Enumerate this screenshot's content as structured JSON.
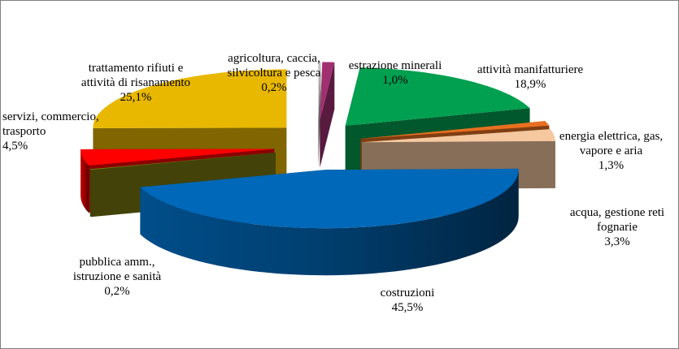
{
  "chart_data": {
    "type": "pie",
    "style": "3d exploded",
    "legend": "none",
    "slices": [
      {
        "label": "agricoltura, caccia,\nsilvicoltura e pesca",
        "value": 0.2,
        "display": "0,2%",
        "color": "#c0c0c0"
      },
      {
        "label": "estrazione minerali",
        "value": 1.0,
        "display": "1,0%",
        "color": "#a03070"
      },
      {
        "label": "attività manifatturiere",
        "value": 18.9,
        "display": "18,9%",
        "color": "#00a050"
      },
      {
        "label": "energia elettrica, gas,\nvapore e aria",
        "value": 1.3,
        "display": "1,3%",
        "color": "#e87020"
      },
      {
        "label": "acqua, gestione reti\nfognarie",
        "value": 3.3,
        "display": "3,3%",
        "color": "#f5c8a0"
      },
      {
        "label": "costruzioni",
        "value": 45.5,
        "display": "45,5%",
        "color": "#0068b8"
      },
      {
        "label": "pubblica amm.,\nistruzione e sanità",
        "value": 0.2,
        "display": "0,2%",
        "color": "#7a7a10"
      },
      {
        "label": "servizi, commercio,\ntrasporto",
        "value": 4.5,
        "display": "4,5%",
        "color": "#ff0000"
      },
      {
        "label": "trattamento rifiuti e\nattività di risanamento",
        "value": 25.1,
        "display": "25,1%",
        "color": "#e8b800"
      }
    ]
  }
}
